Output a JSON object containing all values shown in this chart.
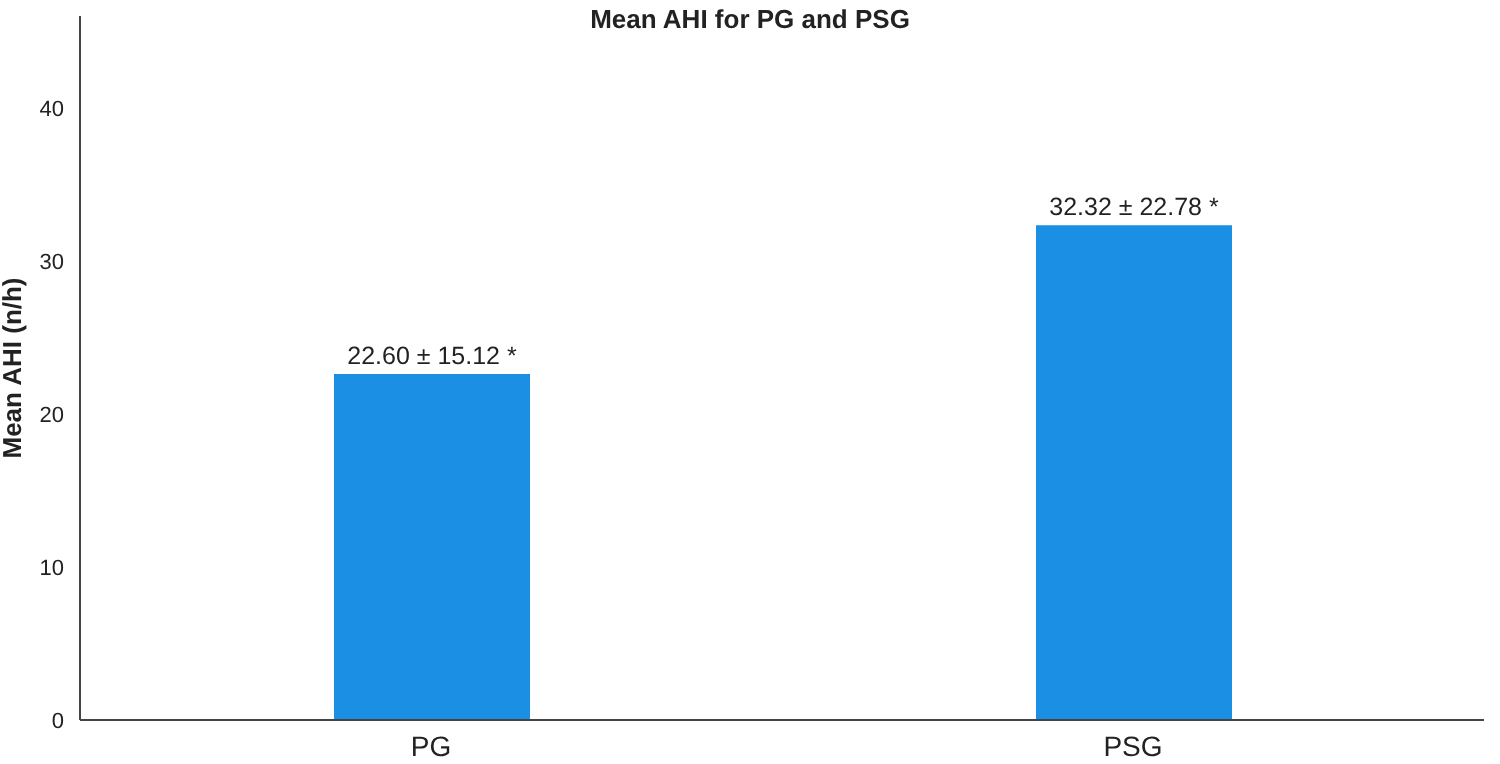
{
  "chart_data": {
    "type": "bar",
    "title": "Mean AHI for PG and PSG",
    "ylabel": "Mean AHI (n/h)",
    "categories": [
      "PG",
      "PSG"
    ],
    "values": [
      22.6,
      32.32
    ],
    "value_labels": [
      "22.60 ± 15.12 *",
      "32.32 ± 22.78 *"
    ],
    "color": "#1a8fe3",
    "ylim": [
      0,
      46
    ],
    "yticks": [
      0,
      10,
      20,
      30,
      40
    ],
    "grid": false,
    "legend": false
  }
}
